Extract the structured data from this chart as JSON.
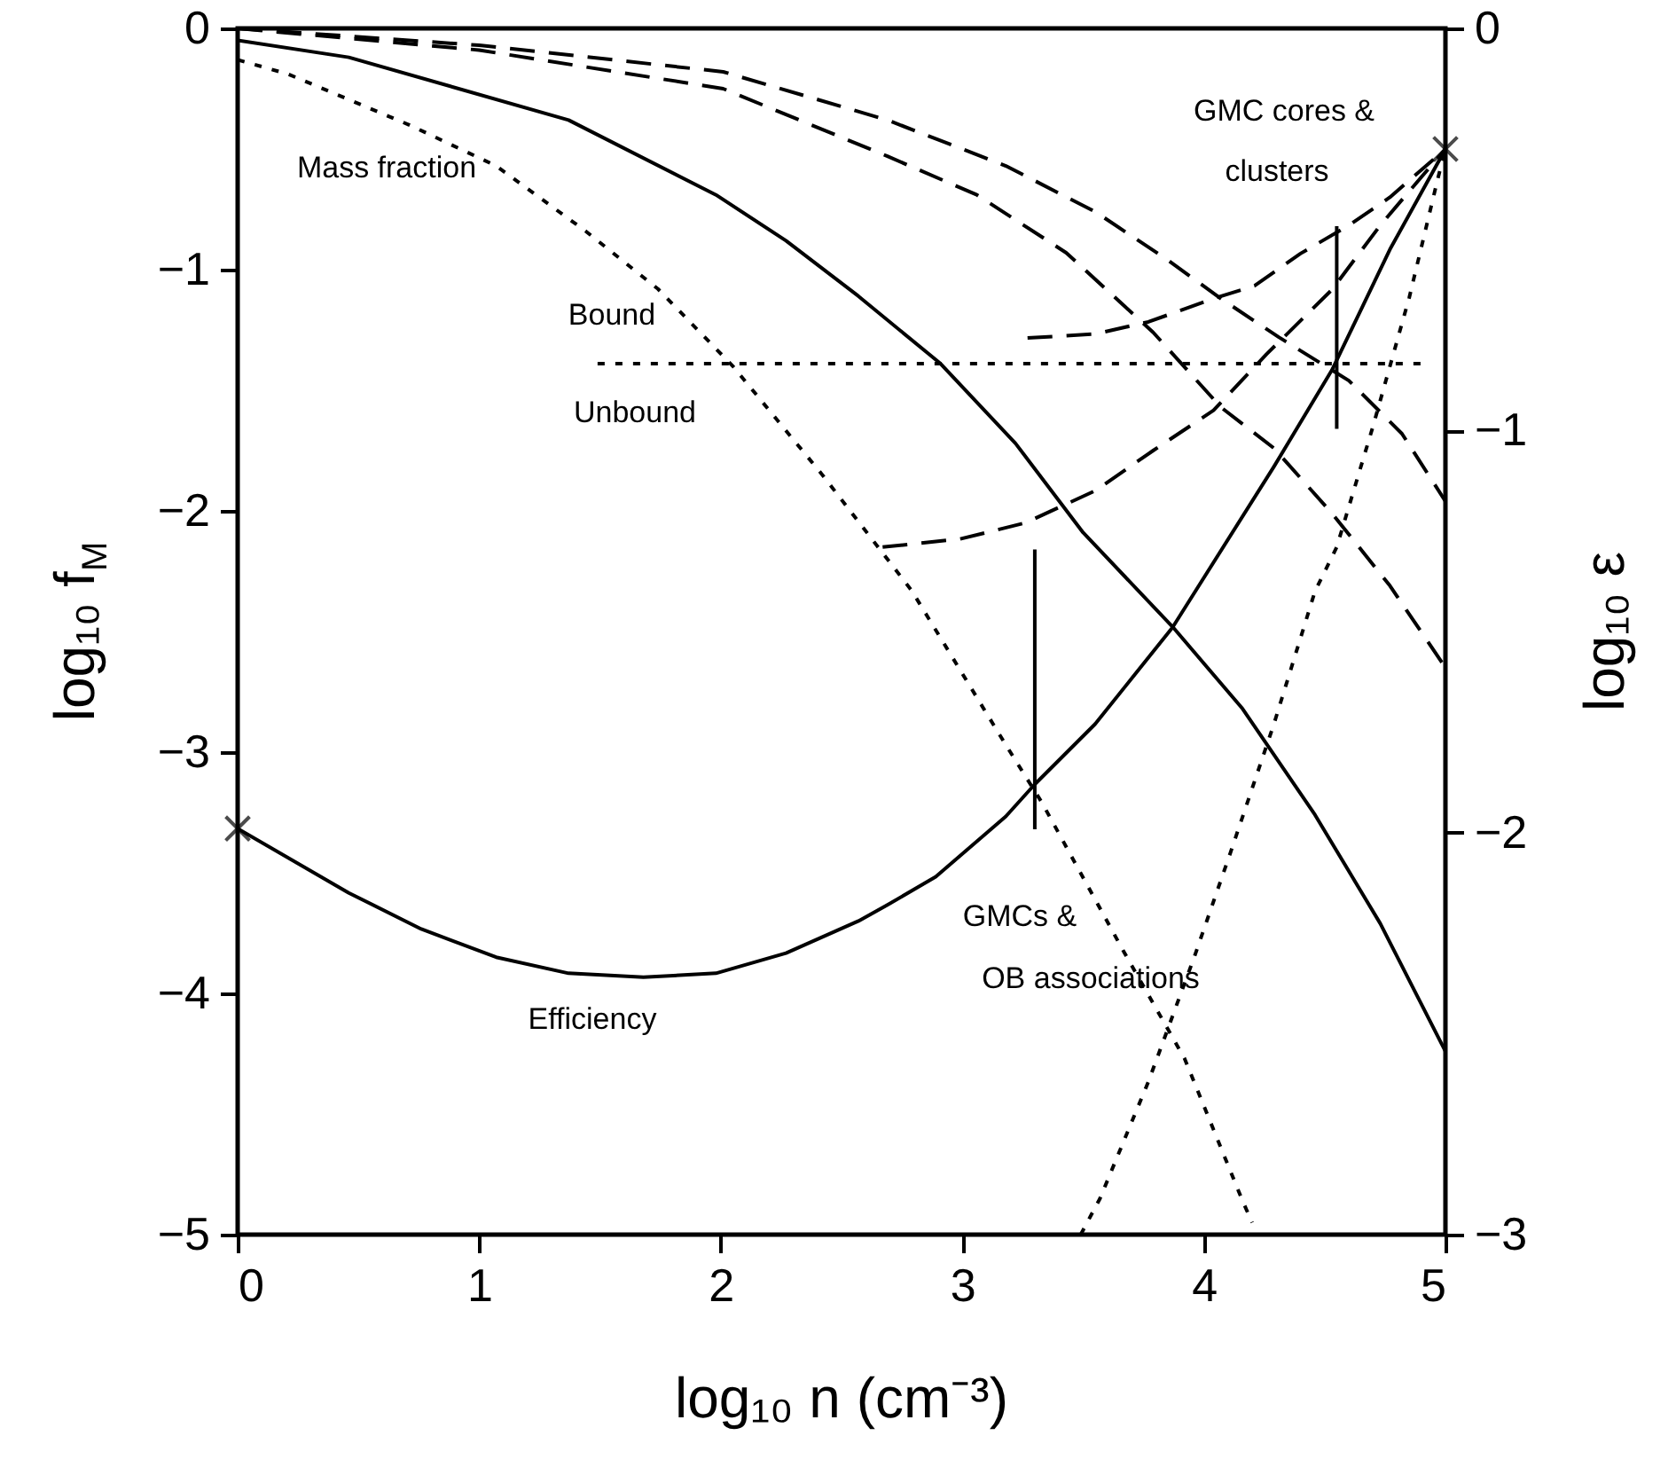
{
  "chart_data": {
    "type": "line",
    "xlabel": "log₁₀ n (cm⁻³)",
    "ylabel": "log₁₀ f$_{M}$",
    "y2label": "log₁₀ ε",
    "xlim": [
      0,
      5
    ],
    "xticks": [
      0,
      1,
      2,
      3,
      4,
      5
    ],
    "ylim": [
      -5,
      0
    ],
    "yticks": [
      -5,
      -4,
      -3,
      -2,
      -1,
      0
    ],
    "y2lim": [
      -3,
      0
    ],
    "y2ticks": [
      -3,
      -2,
      -1,
      0
    ],
    "series": [
      {
        "line_style": "solid",
        "color": "#000000",
        "x": [
          0,
          0.46,
          1.37,
          1.98,
          2.27,
          2.57,
          2.91,
          3.22,
          3.5,
          3.87,
          4.16,
          4.46,
          4.73,
          5
        ],
        "values": [
          -0.05,
          -0.12,
          -0.38,
          -0.69,
          -0.88,
          -1.11,
          -1.39,
          -1.72,
          -2.09,
          -2.48,
          -2.82,
          -3.26,
          -3.71,
          -4.24
        ]
      },
      {
        "line_style": "dotted",
        "color": "#000000",
        "x": [
          0,
          0.21,
          0.71,
          1.07,
          1.44,
          1.74,
          2.05,
          2.42,
          2.79,
          3.18,
          3.33,
          3.67,
          3.92,
          4.16,
          4.2
        ],
        "values": [
          -0.13,
          -0.19,
          -0.4,
          -0.57,
          -0.84,
          -1.08,
          -1.4,
          -1.85,
          -2.33,
          -2.97,
          -3.21,
          -3.83,
          -4.27,
          -4.86,
          -4.95
        ]
      },
      {
        "line_style": "dashed",
        "color": "#000000",
        "x": [
          0,
          1,
          2.01,
          2.69,
          3.18,
          3.55,
          3.85,
          4.07,
          4.31,
          4.6,
          4.82,
          5
        ],
        "values": [
          0,
          -0.07,
          -0.18,
          -0.38,
          -0.57,
          -0.76,
          -0.96,
          -1.12,
          -1.28,
          -1.46,
          -1.68,
          -1.96
        ]
      },
      {
        "line_style": "dashed",
        "color": "#000000",
        "x": [
          0,
          1,
          2.01,
          2.69,
          3.06,
          3.43,
          3.79,
          4.07,
          4.29,
          4.53,
          4.77,
          5
        ],
        "values": [
          0,
          -0.09,
          -0.25,
          -0.53,
          -0.69,
          -0.93,
          -1.26,
          -1.57,
          -1.74,
          -2.01,
          -2.31,
          -2.65
        ]
      },
      {
        "line_style": "dotted",
        "color": "#000000",
        "x": [
          1.49,
          4.9
        ],
        "values": [
          -1.39,
          -1.39
        ]
      },
      {
        "line_style": "solid",
        "color": "#000000",
        "x": [
          3.3,
          3.3
        ],
        "values": [
          -2.16,
          -3.32
        ]
      },
      {
        "line_style": "solid",
        "color": "#000000",
        "x": [
          4.55,
          4.55
        ],
        "values": [
          -0.82,
          -1.66
        ]
      },
      {
        "axis": "y2",
        "line_style": "solid",
        "color": "#000000",
        "x": [
          0,
          0.46,
          0.76,
          1.07,
          1.37,
          1.68,
          1.98,
          2.27,
          2.57,
          2.69,
          2.89,
          3.18,
          3.3,
          3.55,
          3.87,
          4.29,
          4.53,
          4.77,
          5
        ],
        "values": [
          -1.99,
          -2.15,
          -2.24,
          -2.31,
          -2.35,
          -2.36,
          -2.35,
          -2.3,
          -2.22,
          -2.18,
          -2.11,
          -1.96,
          -1.88,
          -1.73,
          -1.49,
          -1.09,
          -0.85,
          -0.55,
          -0.3
        ]
      },
      {
        "axis": "y2",
        "line_style": "dashed",
        "color": "#000000",
        "x": [
          2.67,
          2.99,
          3.26,
          3.55,
          3.79,
          4.04,
          4.26,
          4.53,
          4.73,
          4.9,
          5
        ],
        "values": [
          -1.29,
          -1.27,
          -1.23,
          -1.15,
          -1.05,
          -0.95,
          -0.81,
          -0.65,
          -0.49,
          -0.37,
          -0.3
        ]
      },
      {
        "axis": "y2",
        "line_style": "dashed",
        "color": "#000000",
        "x": [
          3.27,
          3.55,
          3.77,
          4.05,
          4.21,
          4.4,
          4.6,
          4.77,
          5
        ],
        "values": [
          -0.77,
          -0.76,
          -0.73,
          -0.67,
          -0.64,
          -0.56,
          -0.49,
          -0.42,
          -0.3
        ]
      },
      {
        "axis": "y2",
        "line_style": "dotted",
        "color": "#000000",
        "x": [
          3.49,
          3.57,
          3.77,
          3.96,
          4.11,
          4.29,
          4.46,
          4.55,
          4.7,
          4.85,
          4.97,
          5
        ],
        "values": [
          -3,
          -2.91,
          -2.62,
          -2.31,
          -2.05,
          -1.73,
          -1.4,
          -1.29,
          -0.99,
          -0.67,
          -0.37,
          -0.3
        ]
      },
      {
        "type": "scatter",
        "axis": "y2",
        "marker": "cross",
        "color": "#000000",
        "x": [
          0,
          5
        ],
        "values": [
          -1.99,
          -0.3
        ]
      }
    ],
    "annotations": [
      "Mass fraction",
      "Bound",
      "Unbound",
      "Efficiency",
      "GMCs &",
      "OB associations",
      "GMC cores &",
      "clusters"
    ]
  }
}
